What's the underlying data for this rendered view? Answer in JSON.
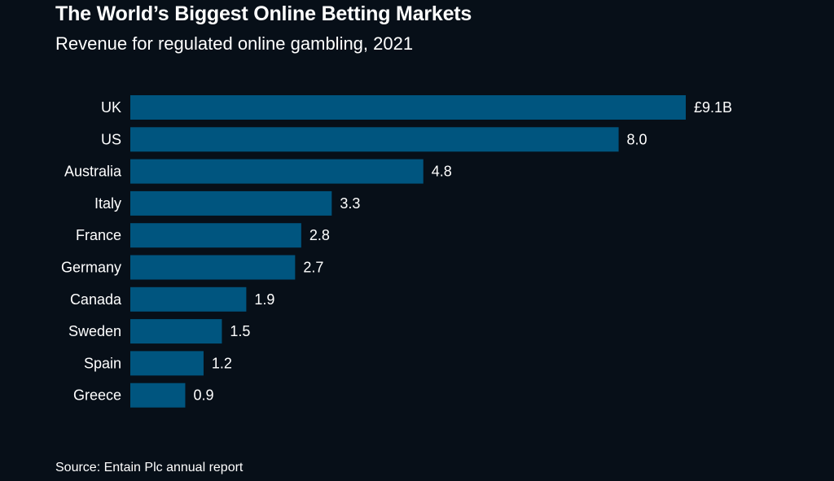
{
  "header": {
    "title": "The World’s Biggest Online Betting Markets",
    "subtitle": "Revenue for regulated online gambling, 2021"
  },
  "footer": {
    "source": "Source: Entain Plc annual report"
  },
  "colors": {
    "background": "#070f18",
    "bar": "#00557f",
    "text": "#ffffff"
  },
  "chart_data": {
    "type": "bar",
    "orientation": "horizontal",
    "title": "The World’s Biggest Online Betting Markets",
    "subtitle": "Revenue for regulated online gambling, 2021",
    "categories": [
      "UK",
      "US",
      "Australia",
      "Italy",
      "France",
      "Germany",
      "Canada",
      "Sweden",
      "Spain",
      "Greece"
    ],
    "values": [
      9.1,
      8.0,
      4.8,
      3.3,
      2.8,
      2.7,
      1.9,
      1.5,
      1.2,
      0.9
    ],
    "value_labels": [
      "£9.1B",
      "8.0",
      "4.8",
      "3.3",
      "2.8",
      "2.7",
      "1.9",
      "1.5",
      "1.2",
      "0.9"
    ],
    "xlim": [
      0,
      9.1
    ],
    "grid": false,
    "legend": "none"
  }
}
